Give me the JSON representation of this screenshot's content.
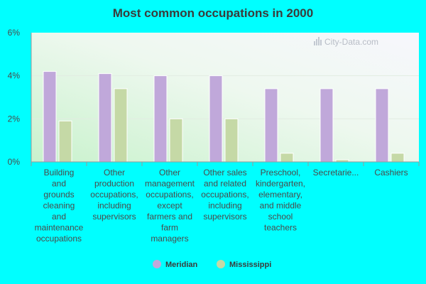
{
  "chart_data": {
    "type": "bar",
    "title": "Most common occupations in 2000",
    "xlabel": "",
    "ylabel": "",
    "ylim": [
      0,
      6
    ],
    "yticks": [
      "0%",
      "2%",
      "4%",
      "6%"
    ],
    "categories": [
      [
        "Building",
        "and",
        "grounds",
        "cleaning",
        "and",
        "maintenance",
        "occupations"
      ],
      [
        "Other",
        "production",
        "occupations,",
        "including",
        "supervisors"
      ],
      [
        "Other",
        "management",
        "occupations,",
        "except",
        "farmers and",
        "farm",
        "managers"
      ],
      [
        "Other sales",
        "and related",
        "occupations,",
        "including",
        "supervisors"
      ],
      [
        "Preschool,",
        "kindergarten,",
        "elementary,",
        "and middle",
        "school",
        "teachers"
      ],
      [
        "Secretarie..."
      ],
      [
        "Cashiers"
      ]
    ],
    "series": [
      {
        "name": "Meridian",
        "color": "#c0a8da",
        "values": [
          4.2,
          4.1,
          4.0,
          4.0,
          3.4,
          3.4,
          3.4
        ]
      },
      {
        "name": "Mississippi",
        "color": "#c5d9a6",
        "values": [
          1.9,
          3.4,
          2.0,
          2.0,
          0.4,
          0.1,
          0.4
        ]
      }
    ],
    "grid": true,
    "legend_position": "bottom",
    "watermark": "City-Data.com"
  }
}
